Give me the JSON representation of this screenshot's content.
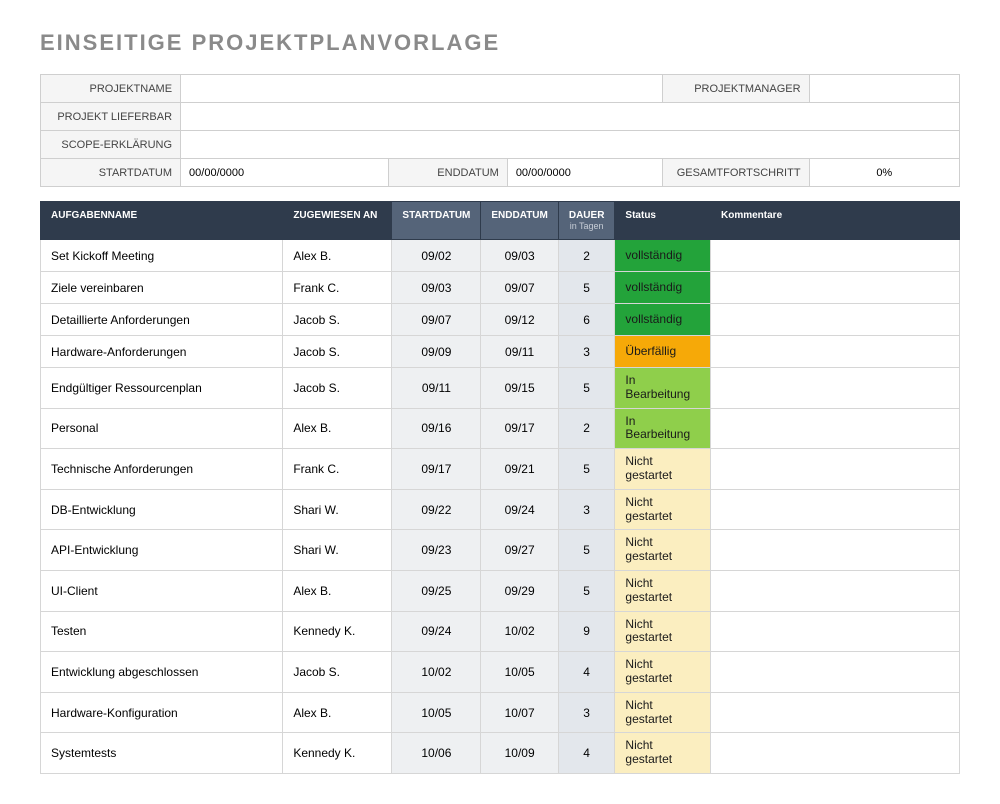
{
  "title": "EINSEITIGE PROJEKTPLANVORLAGE",
  "meta": {
    "labels": {
      "projectName": "PROJEKTNAME",
      "projectManager": "PROJEKTMANAGER",
      "deliverable": "PROJEKT LIEFERBAR",
      "scope": "SCOPE-ERKLÄRUNG",
      "startDate": "STARTDATUM",
      "endDate": "ENDDATUM",
      "overallProgress": "GESAMTFORTSCHRITT"
    },
    "values": {
      "projectName": "",
      "projectManager": "",
      "deliverable": "",
      "scope": "",
      "startDate": "00/00/0000",
      "endDate": "00/00/0000",
      "overallProgress": "0%"
    }
  },
  "tasks": {
    "headers": {
      "taskName": "AUFGABENNAME",
      "assignedTo": "ZUGEWIESEN AN",
      "startDate": "STARTDATUM",
      "endDate": "ENDDATUM",
      "duration": "DAUER",
      "durationSub": "in Tagen",
      "status": "Status",
      "comments": "Kommentare"
    },
    "statusColors": {
      "vollständig": "#23a33a",
      "Überfällig": "#f6a908",
      "In Bearbeitung": "#8fcf4b",
      "Nicht gestartet": "#fbeec0"
    },
    "rows": [
      {
        "name": "Set Kickoff Meeting",
        "assignee": "Alex B.",
        "start": "09/02",
        "end": "09/03",
        "duration": "2",
        "status": "vollständig",
        "comment": ""
      },
      {
        "name": "Ziele vereinbaren",
        "assignee": "Frank C.",
        "start": "09/03",
        "end": "09/07",
        "duration": "5",
        "status": "vollständig",
        "comment": ""
      },
      {
        "name": "Detaillierte Anforderungen",
        "assignee": "Jacob S.",
        "start": "09/07",
        "end": "09/12",
        "duration": "6",
        "status": "vollständig",
        "comment": ""
      },
      {
        "name": "Hardware-Anforderungen",
        "assignee": "Jacob S.",
        "start": "09/09",
        "end": "09/11",
        "duration": "3",
        "status": "Überfällig",
        "comment": ""
      },
      {
        "name": "Endgültiger Ressourcenplan",
        "assignee": "Jacob S.",
        "start": "09/11",
        "end": "09/15",
        "duration": "5",
        "status": "In Bearbeitung",
        "comment": ""
      },
      {
        "name": "Personal",
        "assignee": "Alex B.",
        "start": "09/16",
        "end": "09/17",
        "duration": "2",
        "status": "In Bearbeitung",
        "comment": ""
      },
      {
        "name": "Technische Anforderungen",
        "assignee": "Frank C.",
        "start": "09/17",
        "end": "09/21",
        "duration": "5",
        "status": "Nicht gestartet",
        "comment": ""
      },
      {
        "name": "DB-Entwicklung",
        "assignee": "Shari W.",
        "start": "09/22",
        "end": "09/24",
        "duration": "3",
        "status": "Nicht gestartet",
        "comment": ""
      },
      {
        "name": "API-Entwicklung",
        "assignee": "Shari W.",
        "start": "09/23",
        "end": "09/27",
        "duration": "5",
        "status": "Nicht gestartet",
        "comment": ""
      },
      {
        "name": "UI-Client",
        "assignee": "Alex B.",
        "start": "09/25",
        "end": "09/29",
        "duration": "5",
        "status": "Nicht gestartet",
        "comment": ""
      },
      {
        "name": "Testen",
        "assignee": "Kennedy K.",
        "start": "09/24",
        "end": "10/02",
        "duration": "9",
        "status": "Nicht gestartet",
        "comment": ""
      },
      {
        "name": "Entwicklung abgeschlossen",
        "assignee": "Jacob S.",
        "start": "10/02",
        "end": "10/05",
        "duration": "4",
        "status": "Nicht gestartet",
        "comment": ""
      },
      {
        "name": "Hardware-Konfiguration",
        "assignee": "Alex B.",
        "start": "10/05",
        "end": "10/07",
        "duration": "3",
        "status": "Nicht gestartet",
        "comment": ""
      },
      {
        "name": "Systemtests",
        "assignee": "Kennedy K.",
        "start": "10/06",
        "end": "10/09",
        "duration": "4",
        "status": "Nicht gestartet",
        "comment": ""
      }
    ]
  }
}
